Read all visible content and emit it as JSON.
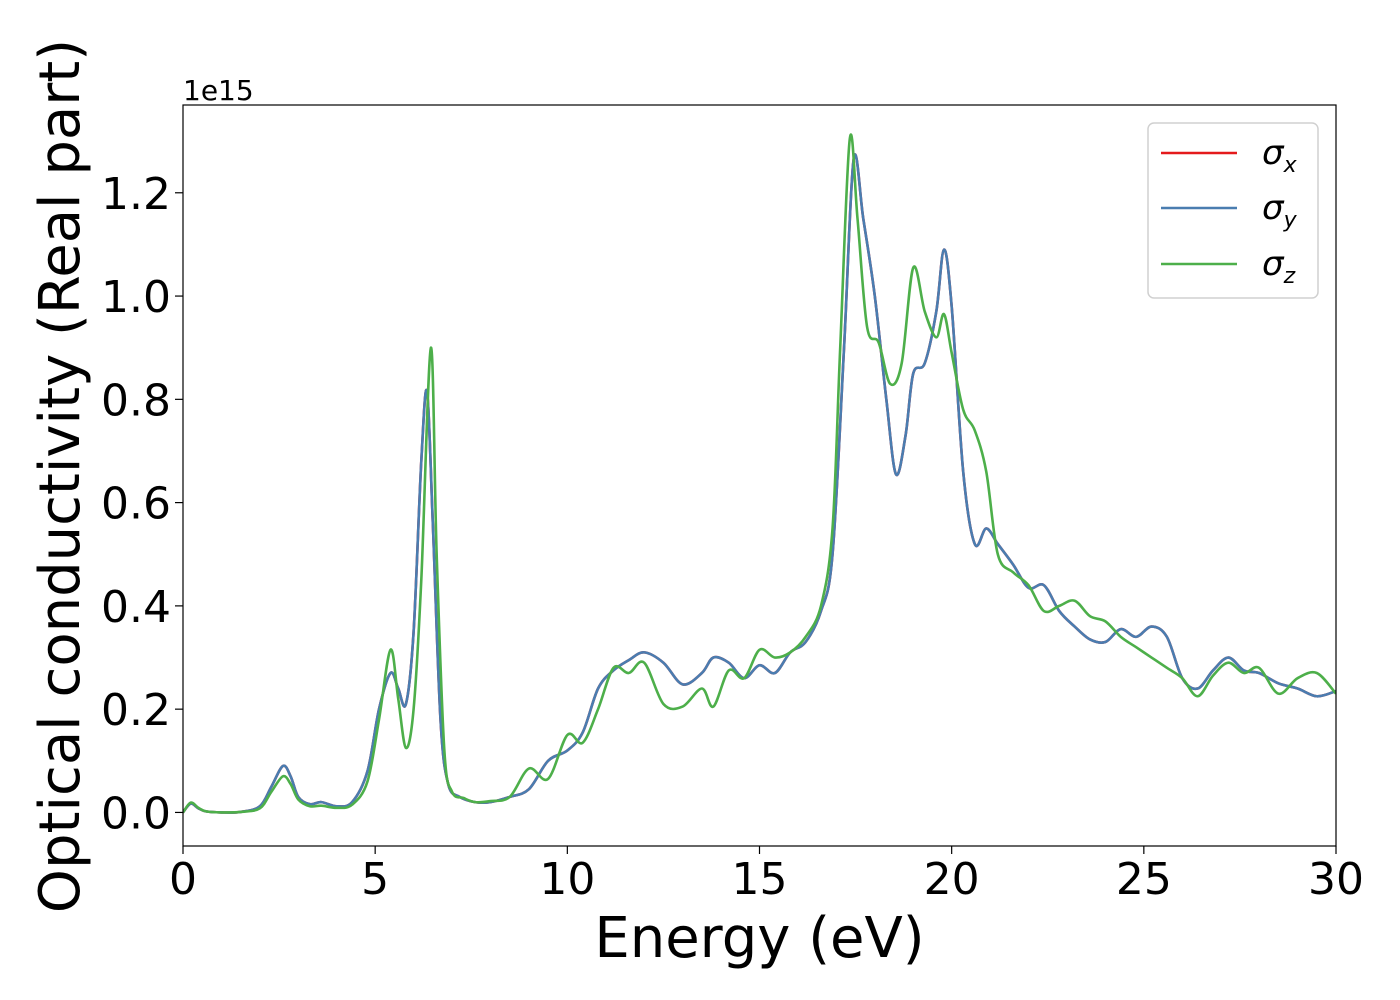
{
  "chart_data": {
    "type": "line",
    "title": "",
    "xlabel": "Energy (eV)",
    "ylabel": "Optical conductivity (Real part)",
    "y_offset_label": "1e15",
    "xlim": [
      0,
      30
    ],
    "ylim": [
      -0.065,
      1.37
    ],
    "x_ticks": [
      0,
      5,
      10,
      15,
      20,
      25,
      30
    ],
    "x_tick_labels": [
      "0",
      "5",
      "10",
      "15",
      "20",
      "25",
      "30"
    ],
    "y_ticks": [
      0.0,
      0.2,
      0.4,
      0.6,
      0.8,
      1.0,
      1.2
    ],
    "y_tick_labels": [
      "0.0",
      "0.2",
      "0.4",
      "0.6",
      "0.8",
      "1.0",
      "1.2"
    ],
    "grid": false,
    "legend_position": "top-right",
    "series": [
      {
        "name": "σx",
        "symbol": "σ",
        "subscript": "x",
        "color": "#e41a1c",
        "x": [
          0,
          0.2,
          0.4,
          0.6,
          1,
          1.5,
          2,
          2.3,
          2.6,
          2.8,
          3,
          3.3,
          3.6,
          4,
          4.4,
          4.8,
          5.1,
          5.4,
          5.6,
          5.8,
          6.0,
          6.2,
          6.35,
          6.5,
          6.7,
          6.9,
          7.2,
          7.6,
          8,
          8.5,
          9,
          9.5,
          10,
          10.4,
          10.8,
          11.2,
          11.6,
          12,
          12.5,
          13,
          13.5,
          13.8,
          14.2,
          14.6,
          15,
          15.4,
          15.8,
          16.2,
          16.6,
          16.9,
          17.2,
          17.45,
          17.7,
          18,
          18.3,
          18.55,
          18.8,
          19.0,
          19.3,
          19.6,
          19.8,
          20.0,
          20.3,
          20.6,
          20.9,
          21.2,
          21.6,
          22,
          22.4,
          22.8,
          23.2,
          23.6,
          24,
          24.4,
          24.8,
          25.2,
          25.6,
          26,
          26.4,
          26.8,
          27.2,
          27.6,
          28,
          28.5,
          29,
          29.5,
          30
        ],
        "y": [
          0.0,
          0.017,
          0.008,
          0.002,
          0.0,
          0.001,
          0.012,
          0.05,
          0.09,
          0.07,
          0.03,
          0.016,
          0.02,
          0.012,
          0.02,
          0.08,
          0.2,
          0.27,
          0.24,
          0.21,
          0.35,
          0.68,
          0.815,
          0.56,
          0.18,
          0.055,
          0.03,
          0.02,
          0.02,
          0.03,
          0.045,
          0.1,
          0.12,
          0.155,
          0.24,
          0.275,
          0.295,
          0.31,
          0.29,
          0.248,
          0.27,
          0.3,
          0.29,
          0.26,
          0.285,
          0.27,
          0.31,
          0.33,
          0.39,
          0.5,
          0.9,
          1.265,
          1.15,
          1.0,
          0.8,
          0.655,
          0.73,
          0.85,
          0.87,
          0.97,
          1.09,
          0.98,
          0.66,
          0.52,
          0.55,
          0.52,
          0.48,
          0.435,
          0.44,
          0.39,
          0.36,
          0.335,
          0.33,
          0.355,
          0.34,
          0.36,
          0.34,
          0.26,
          0.24,
          0.275,
          0.3,
          0.275,
          0.27,
          0.25,
          0.24,
          0.225,
          0.235
        ]
      },
      {
        "name": "σy",
        "symbol": "σ",
        "subscript": "y",
        "color": "#4a7db0",
        "x": [
          0,
          0.2,
          0.4,
          0.6,
          1,
          1.5,
          2,
          2.3,
          2.6,
          2.8,
          3,
          3.3,
          3.6,
          4,
          4.4,
          4.8,
          5.1,
          5.4,
          5.6,
          5.8,
          6.0,
          6.2,
          6.35,
          6.5,
          6.7,
          6.9,
          7.2,
          7.6,
          8,
          8.5,
          9,
          9.5,
          10,
          10.4,
          10.8,
          11.2,
          11.6,
          12,
          12.5,
          13,
          13.5,
          13.8,
          14.2,
          14.6,
          15,
          15.4,
          15.8,
          16.2,
          16.6,
          16.9,
          17.2,
          17.45,
          17.7,
          18,
          18.3,
          18.55,
          18.8,
          19.0,
          19.3,
          19.6,
          19.8,
          20.0,
          20.3,
          20.6,
          20.9,
          21.2,
          21.6,
          22,
          22.4,
          22.8,
          23.2,
          23.6,
          24,
          24.4,
          24.8,
          25.2,
          25.6,
          26,
          26.4,
          26.8,
          27.2,
          27.6,
          28,
          28.5,
          29,
          29.5,
          30
        ],
        "y": [
          0.0,
          0.017,
          0.008,
          0.002,
          0.0,
          0.001,
          0.012,
          0.05,
          0.09,
          0.07,
          0.03,
          0.016,
          0.02,
          0.012,
          0.02,
          0.08,
          0.2,
          0.27,
          0.24,
          0.21,
          0.35,
          0.68,
          0.815,
          0.56,
          0.18,
          0.055,
          0.03,
          0.02,
          0.02,
          0.03,
          0.045,
          0.1,
          0.12,
          0.155,
          0.24,
          0.275,
          0.295,
          0.31,
          0.29,
          0.248,
          0.27,
          0.3,
          0.29,
          0.26,
          0.285,
          0.27,
          0.31,
          0.33,
          0.39,
          0.5,
          0.9,
          1.265,
          1.15,
          1.0,
          0.8,
          0.655,
          0.73,
          0.85,
          0.87,
          0.97,
          1.09,
          0.98,
          0.66,
          0.52,
          0.55,
          0.52,
          0.48,
          0.435,
          0.44,
          0.39,
          0.36,
          0.335,
          0.33,
          0.355,
          0.34,
          0.36,
          0.34,
          0.26,
          0.24,
          0.275,
          0.3,
          0.275,
          0.27,
          0.25,
          0.24,
          0.225,
          0.235
        ]
      },
      {
        "name": "σz",
        "symbol": "σ",
        "subscript": "z",
        "color": "#4daf4a",
        "x": [
          0,
          0.2,
          0.4,
          0.6,
          1,
          1.5,
          2,
          2.3,
          2.6,
          2.8,
          3,
          3.3,
          3.6,
          4,
          4.4,
          4.8,
          5.1,
          5.4,
          5.6,
          5.8,
          6.0,
          6.2,
          6.45,
          6.6,
          6.8,
          7.0,
          7.3,
          7.6,
          8,
          8.5,
          9,
          9.5,
          10,
          10.4,
          10.8,
          11.2,
          11.6,
          12,
          12.5,
          13,
          13.5,
          13.8,
          14.2,
          14.6,
          15,
          15.4,
          15.8,
          16.2,
          16.6,
          16.9,
          17.1,
          17.35,
          17.55,
          17.8,
          18.1,
          18.4,
          18.7,
          19.0,
          19.3,
          19.6,
          19.8,
          20.0,
          20.3,
          20.6,
          20.9,
          21.2,
          21.6,
          22,
          22.4,
          22.8,
          23.2,
          23.6,
          24,
          24.4,
          24.8,
          25.2,
          25.6,
          26,
          26.4,
          26.8,
          27.2,
          27.6,
          28,
          28.5,
          29,
          29.5,
          30
        ],
        "y": [
          0.0,
          0.019,
          0.009,
          0.002,
          0.0,
          0.001,
          0.008,
          0.04,
          0.07,
          0.055,
          0.025,
          0.012,
          0.013,
          0.009,
          0.015,
          0.06,
          0.18,
          0.315,
          0.22,
          0.125,
          0.2,
          0.45,
          0.9,
          0.5,
          0.12,
          0.04,
          0.028,
          0.02,
          0.022,
          0.03,
          0.085,
          0.065,
          0.15,
          0.135,
          0.2,
          0.28,
          0.27,
          0.29,
          0.21,
          0.205,
          0.24,
          0.205,
          0.275,
          0.26,
          0.315,
          0.3,
          0.31,
          0.34,
          0.4,
          0.55,
          0.9,
          1.305,
          1.15,
          0.94,
          0.91,
          0.83,
          0.87,
          1.055,
          0.97,
          0.92,
          0.965,
          0.89,
          0.78,
          0.74,
          0.66,
          0.5,
          0.465,
          0.44,
          0.39,
          0.4,
          0.41,
          0.38,
          0.37,
          0.34,
          0.32,
          0.3,
          0.28,
          0.26,
          0.225,
          0.265,
          0.29,
          0.27,
          0.28,
          0.23,
          0.26,
          0.27,
          0.23
        ]
      }
    ]
  }
}
